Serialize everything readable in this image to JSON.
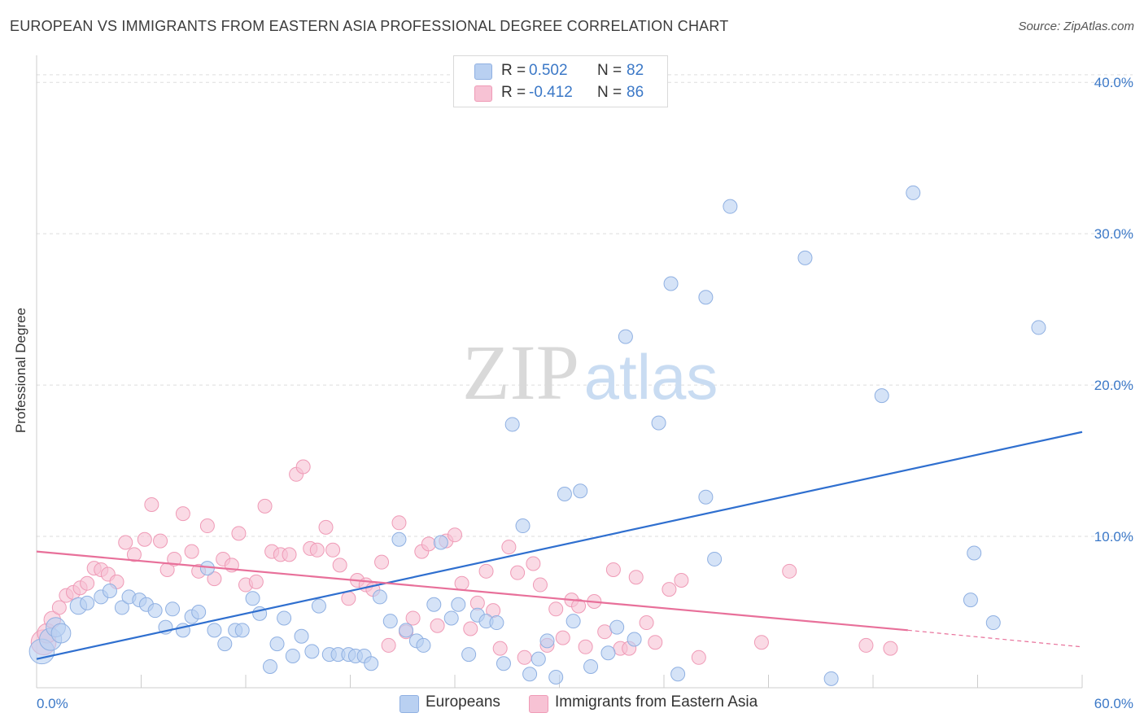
{
  "title": "EUROPEAN VS IMMIGRANTS FROM EASTERN ASIA PROFESSIONAL DEGREE CORRELATION CHART",
  "source": "Source: ZipAtlas.com",
  "watermark": {
    "zip": "ZIP",
    "atlas": "atlas"
  },
  "colors": {
    "blue_fill": "#b9d0f1",
    "blue_stroke": "#8fb0e2",
    "blue_line": "#2f6fcf",
    "pink_fill": "#f7c2d4",
    "pink_stroke": "#ef9ab6",
    "pink_line": "#e8709a",
    "axis_text": "#3b78c7",
    "grid": "#dddddd"
  },
  "stats": [
    {
      "r_label": "R =",
      "r_value": "0.502",
      "n_label": "N =",
      "n_value": "82",
      "color": "#b9d0f1"
    },
    {
      "r_label": "R =",
      "r_value": "-0.412",
      "n_label": "N =",
      "n_value": "86",
      "color": "#f7c2d4"
    }
  ],
  "legend": [
    {
      "label": "Europeans",
      "color": "#b9d0f1"
    },
    {
      "label": "Immigrants from Eastern Asia",
      "color": "#f7c2d4"
    }
  ],
  "chart_data": {
    "type": "scatter",
    "title": "EUROPEAN VS IMMIGRANTS FROM EASTERN ASIA PROFESSIONAL DEGREE CORRELATION CHART",
    "xlabel": "",
    "ylabel": "Professional Degree",
    "xlim": [
      0,
      60
    ],
    "ylim": [
      0,
      42
    ],
    "x_tick_labels": [
      "0.0%",
      "60.0%"
    ],
    "y_ticks": [
      10,
      20,
      30,
      40
    ],
    "y_tick_labels": [
      "10.0%",
      "20.0%",
      "30.0%",
      "40.0%"
    ],
    "grid": true,
    "legend_position": "bottom-center",
    "series": [
      {
        "name": "Europeans",
        "color": "#b9d0f1",
        "trend": {
          "x": [
            0,
            60
          ],
          "y": [
            1.9,
            16.9
          ]
        },
        "points": [
          [
            0.3,
            2.4,
            18
          ],
          [
            0.8,
            3.2,
            16
          ],
          [
            1.1,
            4.0,
            14
          ],
          [
            1.4,
            3.6,
            14
          ],
          [
            2.4,
            5.4,
            12
          ],
          [
            2.9,
            5.6,
            10
          ],
          [
            3.7,
            6.0,
            10
          ],
          [
            4.2,
            6.4,
            10
          ],
          [
            4.9,
            5.3,
            10
          ],
          [
            5.3,
            6.0,
            10
          ],
          [
            5.9,
            5.8,
            10
          ],
          [
            6.3,
            5.5,
            10
          ],
          [
            6.8,
            5.1,
            10
          ],
          [
            7.4,
            4.0,
            10
          ],
          [
            7.8,
            5.2,
            10
          ],
          [
            8.4,
            3.8,
            10
          ],
          [
            8.9,
            4.7,
            10
          ],
          [
            9.3,
            5.0,
            10
          ],
          [
            9.8,
            7.9,
            10
          ],
          [
            10.2,
            3.8,
            10
          ],
          [
            10.8,
            2.9,
            10
          ],
          [
            11.4,
            3.8,
            10
          ],
          [
            11.8,
            3.8,
            10
          ],
          [
            12.4,
            5.9,
            10
          ],
          [
            12.8,
            4.9,
            10
          ],
          [
            13.4,
            1.4,
            10
          ],
          [
            13.8,
            2.9,
            10
          ],
          [
            14.2,
            4.6,
            10
          ],
          [
            14.7,
            2.1,
            10
          ],
          [
            15.2,
            3.4,
            10
          ],
          [
            15.8,
            2.4,
            10
          ],
          [
            16.2,
            5.4,
            10
          ],
          [
            16.8,
            2.2,
            10
          ],
          [
            17.3,
            2.2,
            10
          ],
          [
            17.9,
            2.2,
            10
          ],
          [
            18.3,
            2.1,
            10
          ],
          [
            18.8,
            2.1,
            10
          ],
          [
            19.2,
            1.6,
            10
          ],
          [
            19.7,
            6.0,
            10
          ],
          [
            20.3,
            4.4,
            10
          ],
          [
            20.8,
            9.8,
            10
          ],
          [
            21.2,
            3.8,
            10
          ],
          [
            21.8,
            3.1,
            10
          ],
          [
            22.2,
            2.8,
            10
          ],
          [
            22.8,
            5.5,
            10
          ],
          [
            23.2,
            9.6,
            10
          ],
          [
            23.8,
            4.6,
            10
          ],
          [
            24.2,
            5.5,
            10
          ],
          [
            24.8,
            2.2,
            10
          ],
          [
            25.3,
            4.8,
            10
          ],
          [
            25.8,
            4.4,
            10
          ],
          [
            26.4,
            4.3,
            10
          ],
          [
            26.8,
            1.6,
            10
          ],
          [
            27.3,
            17.4,
            10
          ],
          [
            27.9,
            10.7,
            10
          ],
          [
            28.3,
            0.9,
            10
          ],
          [
            28.8,
            1.9,
            10
          ],
          [
            29.3,
            3.1,
            10
          ],
          [
            29.8,
            0.7,
            10
          ],
          [
            30.3,
            12.8,
            10
          ],
          [
            30.8,
            4.4,
            10
          ],
          [
            31.2,
            13.0,
            10
          ],
          [
            31.8,
            1.4,
            10
          ],
          [
            32.8,
            2.3,
            10
          ],
          [
            33.3,
            4.0,
            10
          ],
          [
            33.8,
            23.2,
            10
          ],
          [
            34.3,
            3.2,
            10
          ],
          [
            35.7,
            17.5,
            10
          ],
          [
            36.4,
            26.7,
            10
          ],
          [
            36.8,
            0.9,
            10
          ],
          [
            38.4,
            12.6,
            10
          ],
          [
            38.4,
            25.8,
            10
          ],
          [
            38.9,
            8.5,
            10
          ],
          [
            39.8,
            31.8,
            10
          ],
          [
            44.1,
            28.4,
            10
          ],
          [
            45.6,
            0.6,
            10
          ],
          [
            48.5,
            19.3,
            10
          ],
          [
            50.3,
            32.7,
            10
          ],
          [
            53.6,
            5.8,
            10
          ],
          [
            53.8,
            8.9,
            10
          ],
          [
            54.9,
            4.3,
            10
          ],
          [
            57.5,
            23.8,
            10
          ]
        ]
      },
      {
        "name": "Immigrants from Eastern Asia",
        "color": "#f7c2d4",
        "trend": {
          "x": [
            0,
            50
          ],
          "y": [
            9.0,
            3.8
          ]
        },
        "trend_dashed": {
          "x": [
            50,
            60
          ],
          "y": [
            3.8,
            2.7
          ]
        },
        "points": [
          [
            0.4,
            3.0,
            18
          ],
          [
            0.6,
            3.6,
            14
          ],
          [
            0.9,
            4.5,
            12
          ],
          [
            1.3,
            5.3,
            10
          ],
          [
            1.7,
            6.1,
            10
          ],
          [
            2.1,
            6.3,
            10
          ],
          [
            2.5,
            6.6,
            10
          ],
          [
            2.9,
            6.9,
            10
          ],
          [
            3.3,
            7.9,
            10
          ],
          [
            3.7,
            7.8,
            10
          ],
          [
            4.1,
            7.5,
            10
          ],
          [
            4.6,
            7.0,
            10
          ],
          [
            5.1,
            9.6,
            10
          ],
          [
            5.6,
            8.8,
            10
          ],
          [
            6.2,
            9.8,
            10
          ],
          [
            6.6,
            12.1,
            10
          ],
          [
            7.1,
            9.7,
            10
          ],
          [
            7.5,
            7.8,
            10
          ],
          [
            7.9,
            8.5,
            10
          ],
          [
            8.4,
            11.5,
            10
          ],
          [
            8.9,
            9.0,
            10
          ],
          [
            9.3,
            7.7,
            10
          ],
          [
            9.8,
            10.7,
            10
          ],
          [
            10.2,
            7.2,
            10
          ],
          [
            10.7,
            8.5,
            10
          ],
          [
            11.2,
            8.1,
            10
          ],
          [
            11.6,
            10.2,
            10
          ],
          [
            12.0,
            6.8,
            10
          ],
          [
            12.6,
            7.0,
            10
          ],
          [
            13.1,
            12.0,
            10
          ],
          [
            13.5,
            9.0,
            10
          ],
          [
            14.0,
            8.8,
            10
          ],
          [
            14.5,
            8.8,
            10
          ],
          [
            14.9,
            14.1,
            10
          ],
          [
            15.3,
            14.6,
            10
          ],
          [
            15.7,
            9.2,
            10
          ],
          [
            16.1,
            9.1,
            10
          ],
          [
            16.6,
            10.6,
            10
          ],
          [
            17.0,
            9.1,
            10
          ],
          [
            17.4,
            8.1,
            10
          ],
          [
            17.9,
            5.9,
            10
          ],
          [
            18.4,
            7.1,
            10
          ],
          [
            18.9,
            6.8,
            10
          ],
          [
            19.3,
            6.5,
            10
          ],
          [
            19.8,
            8.3,
            10
          ],
          [
            20.2,
            2.8,
            10
          ],
          [
            20.8,
            10.9,
            10
          ],
          [
            21.2,
            3.7,
            10
          ],
          [
            21.6,
            4.6,
            10
          ],
          [
            22.1,
            9.0,
            10
          ],
          [
            22.5,
            9.5,
            10
          ],
          [
            23.0,
            4.1,
            10
          ],
          [
            23.5,
            9.7,
            10
          ],
          [
            24.0,
            10.1,
            10
          ],
          [
            24.4,
            6.9,
            10
          ],
          [
            24.9,
            3.9,
            10
          ],
          [
            25.3,
            5.6,
            10
          ],
          [
            25.8,
            7.7,
            10
          ],
          [
            26.2,
            5.1,
            10
          ],
          [
            26.6,
            2.6,
            10
          ],
          [
            27.1,
            9.3,
            10
          ],
          [
            27.6,
            7.6,
            10
          ],
          [
            28.0,
            2.0,
            10
          ],
          [
            28.5,
            8.2,
            10
          ],
          [
            28.9,
            6.8,
            10
          ],
          [
            29.3,
            2.8,
            10
          ],
          [
            29.8,
            5.2,
            10
          ],
          [
            30.2,
            3.3,
            10
          ],
          [
            30.7,
            5.8,
            10
          ],
          [
            31.1,
            5.4,
            10
          ],
          [
            31.5,
            2.7,
            10
          ],
          [
            32.0,
            5.7,
            10
          ],
          [
            32.6,
            3.7,
            10
          ],
          [
            33.1,
            7.8,
            10
          ],
          [
            33.5,
            2.6,
            10
          ],
          [
            34.0,
            2.6,
            10
          ],
          [
            34.4,
            7.3,
            10
          ],
          [
            35.0,
            4.3,
            10
          ],
          [
            35.5,
            3.0,
            10
          ],
          [
            36.3,
            6.5,
            10
          ],
          [
            37.0,
            7.1,
            10
          ],
          [
            38.0,
            2.0,
            10
          ],
          [
            41.6,
            3.0,
            10
          ],
          [
            43.2,
            7.7,
            10
          ],
          [
            47.6,
            2.8,
            10
          ],
          [
            49.0,
            2.6,
            10
          ]
        ]
      }
    ]
  }
}
